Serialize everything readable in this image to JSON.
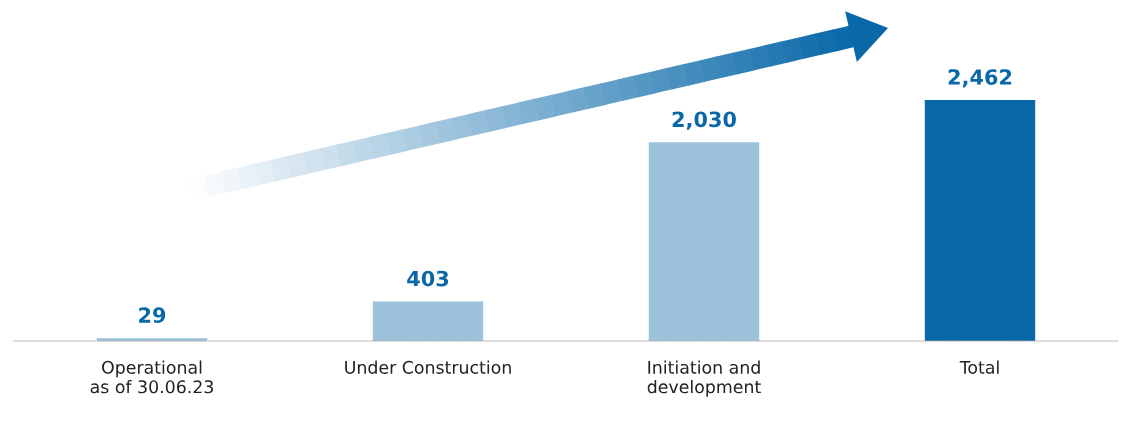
{
  "chart_data": {
    "type": "bar",
    "categories": [
      "Operational\nas of 30.06.23",
      "Under Construction",
      "Initiation and\ndevelopment",
      "Total"
    ],
    "values": [
      29,
      403,
      2030,
      2462
    ],
    "colors": [
      "#9dc3dc",
      "#9dc3dc",
      "#9dc3dc",
      "#0868a8"
    ],
    "value_labels": [
      "29",
      "403",
      "2,030",
      "2,462"
    ],
    "tick_labels": "x",
    "grid": false,
    "legend": false
  }
}
